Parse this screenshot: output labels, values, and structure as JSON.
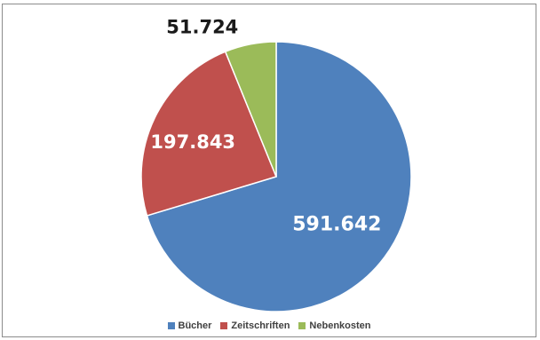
{
  "chart_data": {
    "type": "pie",
    "categories": [
      "Bücher",
      "Zeitschriften",
      "Nebenkosten"
    ],
    "values": [
      591642,
      197843,
      51724
    ],
    "labels": [
      "591.642",
      "197.843",
      "51.724"
    ],
    "colors": [
      "#4f81bd",
      "#c0504d",
      "#9bbb59"
    ],
    "legend_position": "bottom"
  },
  "legend": {
    "items": [
      {
        "label": "Bücher",
        "color": "#4f81bd"
      },
      {
        "label": "Zeitschriften",
        "color": "#c0504d"
      },
      {
        "label": "Nebenkosten",
        "color": "#9bbb59"
      }
    ]
  }
}
